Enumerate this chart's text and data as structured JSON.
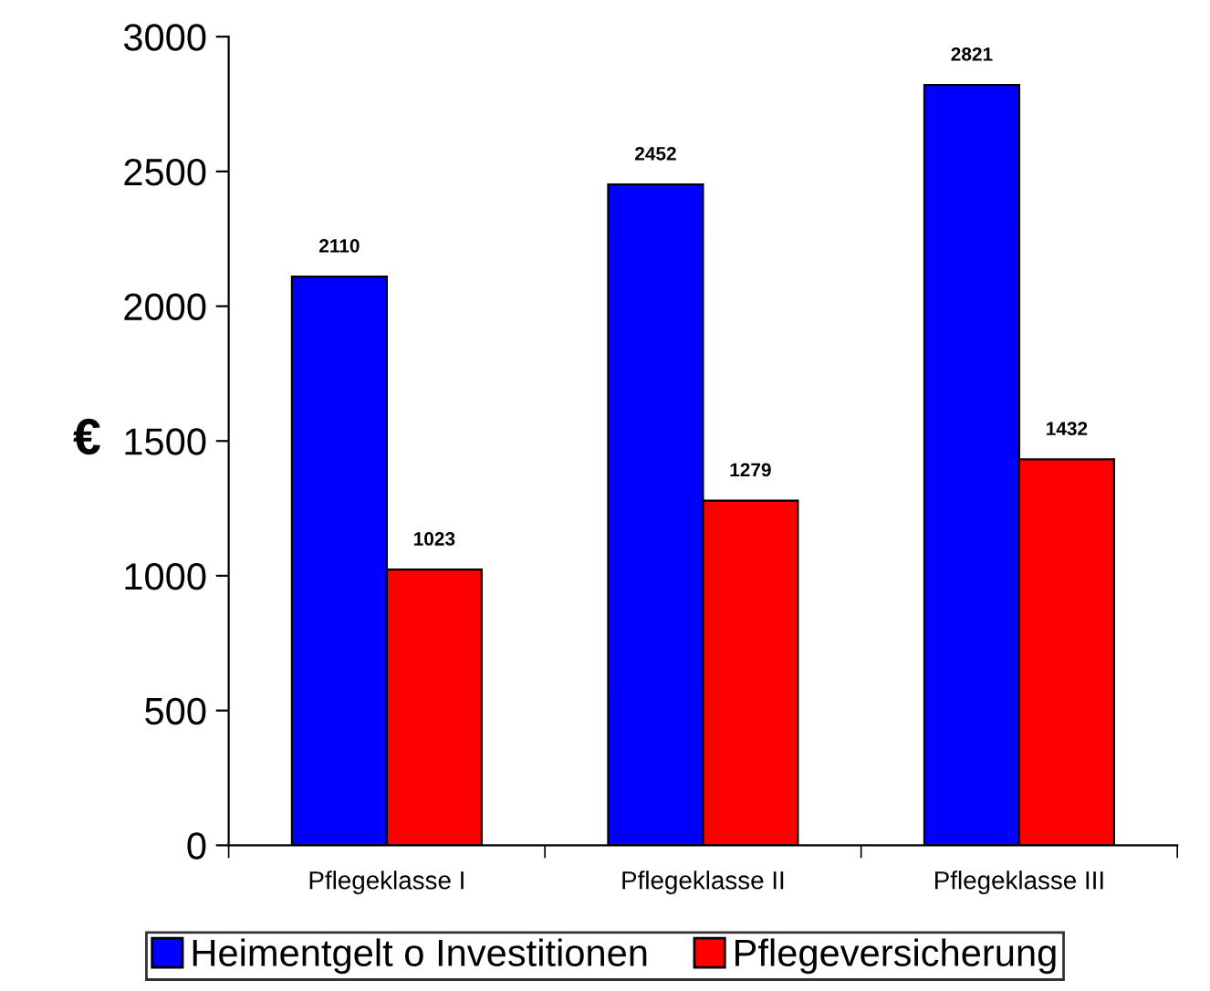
{
  "chart_data": {
    "type": "bar",
    "ylabel": "€",
    "categories": [
      "Pflegeklasse I",
      "Pflegeklasse II",
      "Pflegeklasse III"
    ],
    "series": [
      {
        "name": "Heimentgelt o Investitionen",
        "color": "#0000ff",
        "values": [
          2110,
          2452,
          2821
        ]
      },
      {
        "name": "Pflegeversicherung",
        "color": "#ff0000",
        "values": [
          1023,
          1279,
          1432
        ]
      }
    ],
    "ylim": [
      0,
      3000
    ],
    "yticks": [
      0,
      500,
      1000,
      1500,
      2000,
      2500,
      3000
    ],
    "data_labels": true,
    "legend": "bottom",
    "grid": false
  }
}
